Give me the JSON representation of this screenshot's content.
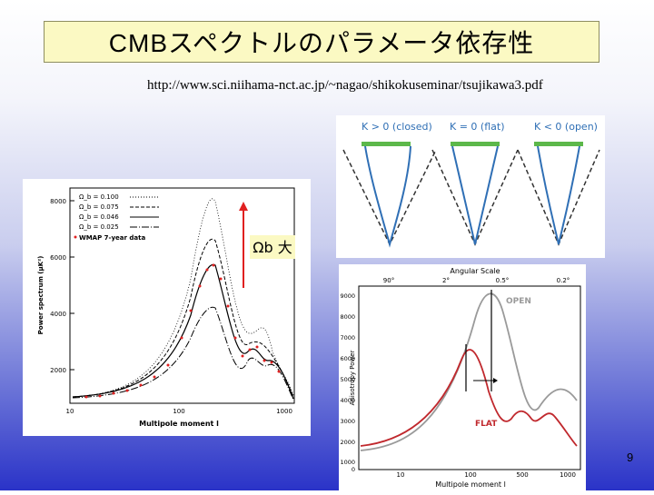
{
  "title": "CMBスペクトルのパラメータ依存性",
  "url": "http://www.sci.niihama-nct.ac.jp/~nagao/shikokuseminar/tsujikawa3.pdf",
  "slide_number": "9",
  "left_plot": {
    "ylabel": "Power spectrum (μK²)",
    "xlabel": "Multipole moment l",
    "yticks": [
      "8000",
      "6000",
      "4000",
      "2000"
    ],
    "xticks": [
      "10",
      "100",
      "1000"
    ],
    "legend": [
      "Ω_b = 0.100",
      "Ω_b = 0.075",
      "Ω_b = 0.046",
      "Ω_b = 0.025",
      "WMAP 7-year data"
    ],
    "annotation": "Ωb 大",
    "arrow_color": "#e02020"
  },
  "geometry_plot": {
    "labels": [
      "K > 0 (closed)",
      "K = 0 (flat)",
      "K < 0 (open)"
    ],
    "bar_color": "#5cb84a",
    "line_color": "#2f6fb5"
  },
  "right_plot": {
    "top_axis_label": "Angular Scale",
    "top_ticks": [
      "90°",
      "2°",
      "0.5°",
      "0.2°"
    ],
    "ylabel": "Anisotropy Power",
    "xlabel": "Multipole moment l",
    "yticks": [
      "9000",
      "8000",
      "7000",
      "6000",
      "5000",
      "4000",
      "3000",
      "2000",
      "1000",
      "0"
    ],
    "xticks": [
      "10",
      "100",
      "500",
      "1000"
    ],
    "open_label": "OPEN",
    "flat_label": "FLAT",
    "open_color": "#9a9a9a",
    "flat_color": "#c0282d"
  }
}
